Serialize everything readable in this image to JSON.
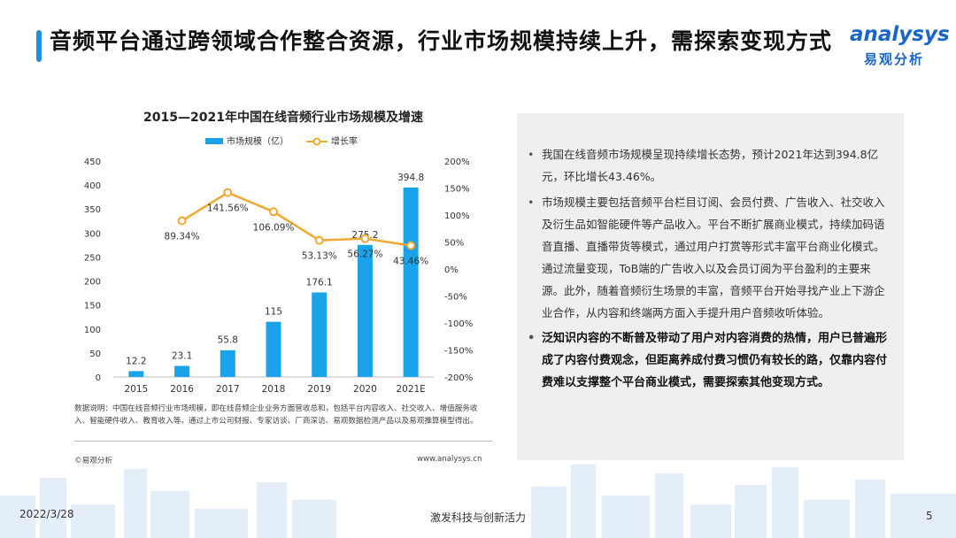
{
  "header": {
    "title": "音频平台通过跨领域合作整合资源，行业市场规模持续上升，需探索变现方式",
    "logo_en": "analysys",
    "logo_cn": "易观分析"
  },
  "chart_data": {
    "type": "bar+line",
    "title": "2015—2021年中国在线音频行业市场规模及增速",
    "categories": [
      "2015",
      "2016",
      "2017",
      "2018",
      "2019",
      "2020",
      "2021E"
    ],
    "series": [
      {
        "name": "市场规模（亿）",
        "type": "bar",
        "axis": "left",
        "values": [
          12.2,
          23.1,
          55.8,
          115,
          176.1,
          275.2,
          394.8
        ],
        "labels": [
          "12.2",
          "23.1",
          "55.8",
          "115",
          "176.1",
          "275.2",
          "394.8"
        ]
      },
      {
        "name": "增长率",
        "type": "line",
        "axis": "right",
        "values": [
          null,
          89.34,
          141.56,
          106.09,
          53.13,
          56.27,
          43.46
        ],
        "labels": [
          "",
          "89.34%",
          "141.56%",
          "106.09%",
          "53.13%",
          "56.27%",
          "43.46%"
        ]
      }
    ],
    "y_left": {
      "min": 0,
      "max": 450,
      "ticks": [
        "0",
        "50",
        "100",
        "150",
        "200",
        "250",
        "300",
        "350",
        "400",
        "450"
      ]
    },
    "y_right": {
      "min": -200,
      "max": 200,
      "ticks": [
        "-200%",
        "-150%",
        "-100%",
        "-50%",
        "0%",
        "50%",
        "100%",
        "150%",
        "200%"
      ]
    },
    "legend": "top",
    "grid": false,
    "colors": {
      "bar": "#1aa3e8",
      "line": "#f0a830"
    }
  },
  "chart_notes": {
    "footnote": "数据说明：中国在线音频行业市场规模，即在线音频企业业务方面营收总和，包括平台内容收入、社交收入、增值服务收入、智能硬件收入、教育收入等。通过上市公司财报、专家访谈、厂商深访、易观数据检测产品以及易观推算模型得出。",
    "copyright": "©易观分析",
    "website": "www.analysys.cn"
  },
  "bullets": [
    {
      "text": "我国在线音频市场规模呈现持续增长态势，预计2021年达到394.8亿元，环比增长43.46%。",
      "strong": false
    },
    {
      "text": "市场规模主要包括音频平台栏目订阅、会员付费、广告收入、社交收入及衍生品如智能硬件等产品收入。平台不断扩展商业模式，持续加码语音直播、直播带货等模式，通过用户打赏等形式丰富平台商业化模式。通过流量变现，ToB端的广告收入以及会员订阅为平台盈利的主要来源。此外，随着音频衍生场景的丰富，音频平台开始寻找产业上下游企业合作，从内容和终端两方面入手提升用户音频收听体验。",
      "strong": false
    },
    {
      "text": "泛知识内容的不断普及带动了用户对内容消费的热情，用户已普遍形成了内容付费观念，但距离养成付费习惯仍有较长的路，仅靠内容付费难以支撑整个平台商业模式，需要探索其他变现方式。",
      "strong": true
    }
  ],
  "footer": {
    "date": "2022/3/28",
    "slogan": "激发科技与创新活力",
    "page": "5"
  },
  "colors": {
    "accent": "#1f8fe0",
    "brand": "#1a66c8"
  }
}
